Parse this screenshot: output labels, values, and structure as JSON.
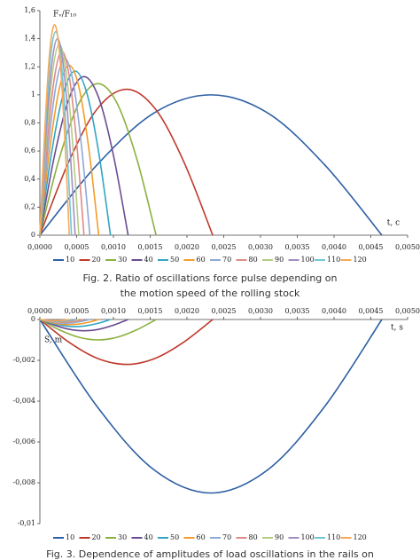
{
  "chart_data": [
    {
      "type": "line",
      "y_label": "Fᵥ/F₁₀",
      "x_label": "t, c",
      "caption": [
        "Fig. 2. Ratio of oscillations force pulse depending on",
        "the motion speed of the rolling stock"
      ],
      "xlim": [
        0,
        0.005
      ],
      "ylim": [
        0,
        1.6
      ],
      "xticks": [
        {
          "value": 0,
          "label": "0,0000"
        },
        {
          "value": 0.0005,
          "label": "0,0005"
        },
        {
          "value": 0.001,
          "label": "0,0010"
        },
        {
          "value": 0.0015,
          "label": "0,0015"
        },
        {
          "value": 0.002,
          "label": "0,0020"
        },
        {
          "value": 0.0025,
          "label": "0,0025"
        },
        {
          "value": 0.003,
          "label": "0,0030"
        },
        {
          "value": 0.0035,
          "label": "0,0035"
        },
        {
          "value": 0.004,
          "label": "0,0040"
        },
        {
          "value": 0.0045,
          "label": "0,0045"
        },
        {
          "value": 0.005,
          "label": "0,0050"
        }
      ],
      "yticks": [
        0,
        {
          "value": 0.2,
          "label": "0,2"
        },
        {
          "value": 0.4,
          "label": "0,4"
        },
        {
          "value": 0.6,
          "label": "0,6"
        },
        {
          "value": 0.8,
          "label": "0,8"
        },
        1,
        {
          "value": 1.2,
          "label": "1,2"
        },
        {
          "value": 1.4,
          "label": "1,4"
        },
        {
          "value": 1.6,
          "label": "1,6"
        }
      ],
      "x_ticks_position": "bottom",
      "grid": false,
      "legend": "bottom",
      "series": [
        {
          "name": "10",
          "color": "#2e5fa3",
          "x": [
            0,
            0.000775,
            0.00155,
            0.002325,
            0.0031,
            0.003875,
            0.00465
          ],
          "values": [
            0,
            0.5,
            0.87,
            1.0,
            0.87,
            0.5,
            0
          ]
        },
        {
          "name": "20",
          "color": "#c0392b",
          "x": [
            0,
            0.00039,
            0.00078,
            0.00118,
            0.00157,
            0.00196,
            0.00235
          ],
          "values": [
            0,
            0.52,
            0.9,
            1.04,
            0.9,
            0.52,
            0
          ]
        },
        {
          "name": "30",
          "color": "#8cb040",
          "x": [
            0,
            0.00026,
            0.00053,
            0.00079,
            0.00105,
            0.00132,
            0.00158
          ],
          "values": [
            0,
            0.54,
            0.94,
            1.08,
            0.94,
            0.54,
            0
          ]
        },
        {
          "name": "40",
          "color": "#6a4c93",
          "x": [
            0,
            0.0002,
            0.0004,
            0.0006,
            0.0008,
            0.001,
            0.0012
          ],
          "values": [
            0,
            0.57,
            0.98,
            1.13,
            0.98,
            0.57,
            0
          ]
        },
        {
          "name": "50",
          "color": "#31a5c4",
          "x": [
            0,
            0.00016,
            0.00032,
            0.00048,
            0.00064,
            0.0008,
            0.00096
          ],
          "values": [
            0,
            0.59,
            1.01,
            1.17,
            1.01,
            0.59,
            0
          ]
        },
        {
          "name": "60",
          "color": "#f39c2a",
          "x": [
            0,
            0.000133,
            0.000267,
            0.0004,
            0.000533,
            0.000667,
            0.0008
          ],
          "values": [
            0,
            0.61,
            1.05,
            1.21,
            1.05,
            0.61,
            0
          ]
        },
        {
          "name": "70",
          "color": "#8ea9d8",
          "x": [
            0,
            0.000113,
            0.000227,
            0.00034,
            0.000453,
            0.000567,
            0.00068
          ],
          "values": [
            0,
            0.63,
            1.09,
            1.26,
            1.09,
            0.63,
            0
          ]
        },
        {
          "name": "80",
          "color": "#e08a87",
          "x": [
            0,
            0.0001,
            0.0002,
            0.0003,
            0.0004,
            0.0005,
            0.0006
          ],
          "values": [
            0,
            0.66,
            1.13,
            1.31,
            1.13,
            0.66,
            0
          ]
        },
        {
          "name": "90",
          "color": "#b5cc84",
          "x": [
            0,
            8.8e-05,
            0.000177,
            0.000265,
            0.000353,
            0.000442,
            0.00053
          ],
          "values": [
            0,
            0.68,
            1.18,
            1.36,
            1.18,
            0.68,
            0
          ]
        },
        {
          "name": "100",
          "color": "#a28fc2",
          "x": [
            0,
            8e-05,
            0.00016,
            0.00024,
            0.00032,
            0.0004,
            0.00048
          ],
          "values": [
            0,
            0.7,
            1.21,
            1.4,
            1.21,
            0.7,
            0
          ]
        },
        {
          "name": "110",
          "color": "#6fc6d8",
          "x": [
            0,
            7.2e-05,
            0.000143,
            0.000215,
            0.000287,
            0.000358,
            0.00043
          ],
          "values": [
            0,
            0.73,
            1.26,
            1.45,
            1.26,
            0.73,
            0
          ]
        },
        {
          "name": "120",
          "color": "#f7a957",
          "x": [
            0,
            6.7e-05,
            0.000133,
            0.0002,
            0.000267,
            0.000333,
            0.0004
          ],
          "values": [
            0,
            0.75,
            1.3,
            1.5,
            1.3,
            0.75,
            0
          ]
        }
      ]
    },
    {
      "type": "line",
      "y_label": "S, m",
      "x_label": "t, s",
      "caption": [
        "Fig. 3. Dependence of amplitudes of load oscillations in the rails on"
      ],
      "xlim": [
        0,
        0.005
      ],
      "ylim": [
        -0.01,
        0
      ],
      "xticks": [
        {
          "value": 0,
          "label": "0,0000"
        },
        {
          "value": 0.0005,
          "label": "0,0005"
        },
        {
          "value": 0.001,
          "label": "0,0010"
        },
        {
          "value": 0.0015,
          "label": "0,0015"
        },
        {
          "value": 0.002,
          "label": "0,0020"
        },
        {
          "value": 0.0025,
          "label": "0,0025"
        },
        {
          "value": 0.003,
          "label": "0,0030"
        },
        {
          "value": 0.0035,
          "label": "0,0035"
        },
        {
          "value": 0.004,
          "label": "0,0040"
        },
        {
          "value": 0.0045,
          "label": "0,0045"
        },
        {
          "value": 0.005,
          "label": "0,0050"
        }
      ],
      "yticks": [
        0,
        {
          "value": -0.002,
          "label": "-0,002"
        },
        {
          "value": -0.004,
          "label": "-0,004"
        },
        {
          "value": -0.006,
          "label": "-0,006"
        },
        {
          "value": -0.008,
          "label": "-0,008"
        },
        {
          "value": -0.01,
          "label": "-0,01"
        }
      ],
      "x_ticks_position": "top",
      "grid": false,
      "legend": "bottom",
      "series": [
        {
          "name": "10",
          "color": "#2e5fa3",
          "x": [
            0,
            0.000775,
            0.00155,
            0.002325,
            0.0031,
            0.003875,
            0.00465
          ],
          "values": [
            0,
            -0.00425,
            -0.00736,
            -0.0085,
            -0.00736,
            -0.00425,
            0
          ]
        },
        {
          "name": "20",
          "color": "#c0392b",
          "x": [
            0,
            0.00039,
            0.00078,
            0.00118,
            0.00157,
            0.00196,
            0.00235
          ],
          "values": [
            0,
            -0.0011,
            -0.0019,
            -0.0022,
            -0.0019,
            -0.0011,
            0
          ]
        },
        {
          "name": "30",
          "color": "#8cb040",
          "x": [
            0,
            0.00026,
            0.00053,
            0.00079,
            0.00105,
            0.00132,
            0.00158
          ],
          "values": [
            0,
            -0.0005,
            -0.00087,
            -0.001,
            -0.00087,
            -0.0005,
            0
          ]
        },
        {
          "name": "40",
          "color": "#6a4c93",
          "x": [
            0,
            0.0002,
            0.0004,
            0.0006,
            0.0008,
            0.001,
            0.0012
          ],
          "values": [
            0,
            -0.00028,
            -0.00048,
            -0.00055,
            -0.00048,
            -0.00028,
            0
          ]
        },
        {
          "name": "50",
          "color": "#31a5c4",
          "x": [
            0,
            0.00016,
            0.00032,
            0.00048,
            0.00064,
            0.0008,
            0.00096
          ],
          "values": [
            0,
            -0.00018,
            -0.0003,
            -0.00035,
            -0.0003,
            -0.00018,
            0
          ]
        },
        {
          "name": "60",
          "color": "#f39c2a",
          "x": [
            0,
            0.000133,
            0.000267,
            0.0004,
            0.000533,
            0.000667,
            0.0008
          ],
          "values": [
            0,
            -0.00013,
            -0.00022,
            -0.00025,
            -0.00022,
            -0.00013,
            0
          ]
        },
        {
          "name": "70",
          "color": "#8ea9d8",
          "x": [
            0,
            0.000113,
            0.000227,
            0.00034,
            0.000453,
            0.000567,
            0.00068
          ],
          "values": [
            0,
            -9e-05,
            -0.00016,
            -0.00018,
            -0.00016,
            -9e-05,
            0
          ]
        },
        {
          "name": "80",
          "color": "#e08a87",
          "x": [
            0,
            0.0001,
            0.0002,
            0.0003,
            0.0004,
            0.0005,
            0.0006
          ],
          "values": [
            0,
            -7e-05,
            -0.00012,
            -0.00014,
            -0.00012,
            -7e-05,
            0
          ]
        },
        {
          "name": "90",
          "color": "#b5cc84",
          "x": [
            0,
            8.8e-05,
            0.000177,
            0.000265,
            0.000353,
            0.000442,
            0.00053
          ],
          "values": [
            0,
            -5.5e-05,
            -9.5e-05,
            -0.00011,
            -9.5e-05,
            -5.5e-05,
            0
          ]
        },
        {
          "name": "100",
          "color": "#a28fc2",
          "x": [
            0,
            8e-05,
            0.00016,
            0.00024,
            0.00032,
            0.0004,
            0.00048
          ],
          "values": [
            0,
            -4.5e-05,
            -7.8e-05,
            -9e-05,
            -7.8e-05,
            -4.5e-05,
            0
          ]
        },
        {
          "name": "110",
          "color": "#6fc6d8",
          "x": [
            0,
            7.2e-05,
            0.000143,
            0.000215,
            0.000287,
            0.000358,
            0.00043
          ],
          "values": [
            0,
            -3.8e-05,
            -6.5e-05,
            -7.5e-05,
            -6.5e-05,
            -3.8e-05,
            0
          ]
        },
        {
          "name": "120",
          "color": "#f7a957",
          "x": [
            0,
            6.7e-05,
            0.000133,
            0.0002,
            0.000267,
            0.000333,
            0.0004
          ],
          "values": [
            0,
            -3e-05,
            -5.2e-05,
            -6e-05,
            -5.2e-05,
            -3e-05,
            0
          ]
        }
      ]
    }
  ]
}
